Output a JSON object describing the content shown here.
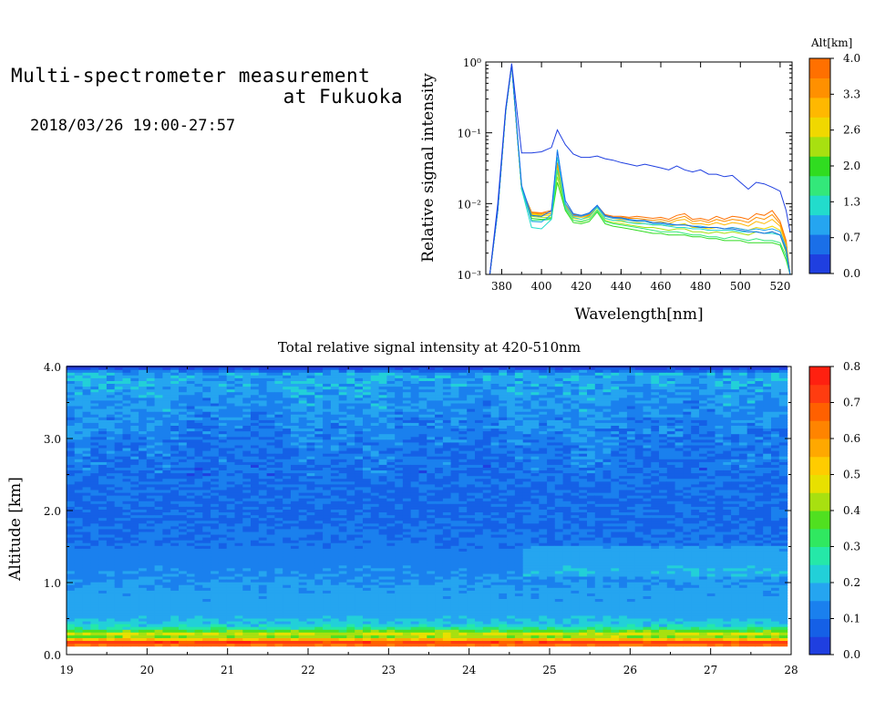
{
  "header": {
    "title_line1": "Multi-spectrometer measurement",
    "title_line2": "at Fukuoka",
    "date_range": "2018/03/26 19:00-27:57"
  },
  "chart_data": [
    {
      "type": "line",
      "name_key": "spectrum",
      "xlabel": "Wavelength[nm]",
      "ylabel": "Relative signal intensity",
      "xlim": [
        372,
        526
      ],
      "ylim": [
        0.001,
        1
      ],
      "yscale": "log",
      "xticks": [
        380,
        400,
        420,
        440,
        460,
        480,
        500,
        520
      ],
      "xtick_labels": [
        "380",
        "400",
        "420",
        "440",
        "460",
        "480",
        "500",
        "520"
      ],
      "ytick_labels": [
        "10⁻³",
        "10⁻²",
        "10⁻¹",
        "10⁰"
      ],
      "colorbar": {
        "title": "Alt[km]",
        "labels": [
          "0.0",
          "0.7",
          "1.3",
          "2.0",
          "2.6",
          "3.3",
          "4.0"
        ],
        "colors": [
          "#1f3fe0",
          "#1a6fe8",
          "#25a5f0",
          "#22dccc",
          "#33e87a",
          "#30dc20",
          "#a8e010",
          "#f0d800",
          "#ffb800",
          "#ff9000",
          "#ff7000"
        ]
      },
      "x": [
        374,
        378,
        382,
        385,
        390,
        395,
        400,
        405,
        408,
        412,
        416,
        420,
        424,
        428,
        432,
        436,
        440,
        444,
        448,
        452,
        456,
        460,
        464,
        468,
        472,
        476,
        480,
        484,
        488,
        492,
        496,
        500,
        504,
        508,
        512,
        516,
        520,
        523,
        525
      ],
      "series": [
        {
          "color": "#1f3fe0",
          "values": [
            0.001,
            0.01,
            0.22,
            0.95,
            0.052,
            0.052,
            0.054,
            0.062,
            0.11,
            0.068,
            0.05,
            0.045,
            0.045,
            0.047,
            0.043,
            0.041,
            0.038,
            0.036,
            0.034,
            0.036,
            0.034,
            0.032,
            0.03,
            0.034,
            0.03,
            0.028,
            0.03,
            0.026,
            0.026,
            0.024,
            0.025,
            0.02,
            0.016,
            0.02,
            0.019,
            0.017,
            0.015,
            0.008,
            0.004
          ]
        },
        {
          "color": "#1a6fe8",
          "values": [
            0.001,
            0.008,
            0.21,
            0.93,
            0.018,
            0.0068,
            0.0066,
            0.008,
            0.055,
            0.011,
            0.0072,
            0.0068,
            0.0074,
            0.0095,
            0.0068,
            0.0064,
            0.0063,
            0.006,
            0.0058,
            0.0058,
            0.0054,
            0.0054,
            0.0052,
            0.005,
            0.005,
            0.0048,
            0.0046,
            0.0046,
            0.0046,
            0.0044,
            0.0044,
            0.0042,
            0.004,
            0.004,
            0.0038,
            0.004,
            0.0036,
            0.0022,
            0.001
          ]
        },
        {
          "color": "#25a5f0",
          "values": [
            0.001,
            0.008,
            0.2,
            0.9,
            0.018,
            0.0056,
            0.0055,
            0.007,
            0.058,
            0.01,
            0.0068,
            0.0066,
            0.0072,
            0.0092,
            0.0066,
            0.0062,
            0.0062,
            0.0058,
            0.0056,
            0.0056,
            0.0052,
            0.0052,
            0.005,
            0.005,
            0.005,
            0.0048,
            0.0048,
            0.0046,
            0.0046,
            0.0044,
            0.0046,
            0.0044,
            0.0042,
            0.0044,
            0.0042,
            0.0044,
            0.004,
            0.0024,
            0.001
          ]
        },
        {
          "color": "#22dccc",
          "values": [
            0.001,
            0.008,
            0.2,
            0.9,
            0.016,
            0.0046,
            0.0044,
            0.006,
            0.045,
            0.009,
            0.0064,
            0.006,
            0.0066,
            0.0088,
            0.0062,
            0.0058,
            0.0058,
            0.0054,
            0.0052,
            0.0052,
            0.005,
            0.005,
            0.0048,
            0.0046,
            0.0046,
            0.0044,
            0.0044,
            0.0042,
            0.0042,
            0.0042,
            0.0042,
            0.004,
            0.004,
            0.004,
            0.0038,
            0.0038,
            0.0036,
            0.0022,
            0.001
          ]
        },
        {
          "color": "#33e87a",
          "values": [
            0.001,
            0.008,
            0.2,
            0.9,
            0.016,
            0.0058,
            0.0058,
            0.006,
            0.03,
            0.0085,
            0.0058,
            0.0056,
            0.006,
            0.008,
            0.0056,
            0.0052,
            0.005,
            0.0048,
            0.0046,
            0.0044,
            0.0042,
            0.004,
            0.004,
            0.004,
            0.0038,
            0.0036,
            0.0036,
            0.0034,
            0.0034,
            0.0032,
            0.0034,
            0.0032,
            0.003,
            0.0032,
            0.003,
            0.003,
            0.0028,
            0.0018,
            0.001
          ]
        },
        {
          "color": "#30dc20",
          "values": [
            0.001,
            0.008,
            0.2,
            0.9,
            0.016,
            0.0062,
            0.006,
            0.0062,
            0.02,
            0.008,
            0.0054,
            0.0052,
            0.0056,
            0.0076,
            0.0052,
            0.0048,
            0.0046,
            0.0044,
            0.0042,
            0.004,
            0.0038,
            0.0038,
            0.0036,
            0.0036,
            0.0036,
            0.0034,
            0.0034,
            0.0032,
            0.0032,
            0.003,
            0.003,
            0.003,
            0.0028,
            0.0028,
            0.0028,
            0.0028,
            0.0026,
            0.0016,
            0.001
          ]
        },
        {
          "color": "#a8e010",
          "values": [
            0.001,
            0.008,
            0.2,
            0.9,
            0.016,
            0.0066,
            0.0064,
            0.0064,
            0.024,
            0.0084,
            0.0058,
            0.0055,
            0.006,
            0.0082,
            0.0058,
            0.0054,
            0.0052,
            0.005,
            0.0048,
            0.0046,
            0.0046,
            0.0044,
            0.0042,
            0.0044,
            0.0044,
            0.004,
            0.004,
            0.0038,
            0.004,
            0.0038,
            0.004,
            0.0038,
            0.0036,
            0.004,
            0.0038,
            0.004,
            0.0036,
            0.002,
            0.001
          ]
        },
        {
          "color": "#f0d800",
          "values": [
            0.001,
            0.008,
            0.2,
            0.9,
            0.016,
            0.007,
            0.0068,
            0.0068,
            0.028,
            0.009,
            0.0062,
            0.006,
            0.0064,
            0.0088,
            0.0062,
            0.0058,
            0.0056,
            0.0054,
            0.0054,
            0.0052,
            0.005,
            0.005,
            0.0048,
            0.005,
            0.0052,
            0.0046,
            0.0046,
            0.0044,
            0.0046,
            0.0044,
            0.0046,
            0.0044,
            0.0042,
            0.0046,
            0.0044,
            0.0048,
            0.0042,
            0.0024,
            0.001
          ]
        },
        {
          "color": "#ffb800",
          "values": [
            0.001,
            0.008,
            0.2,
            0.9,
            0.016,
            0.0072,
            0.007,
            0.0072,
            0.032,
            0.0094,
            0.0066,
            0.0064,
            0.0066,
            0.009,
            0.0066,
            0.0062,
            0.006,
            0.0058,
            0.0058,
            0.0056,
            0.0054,
            0.0056,
            0.0052,
            0.0058,
            0.006,
            0.0052,
            0.0052,
            0.005,
            0.0054,
            0.005,
            0.0054,
            0.0052,
            0.0048,
            0.0056,
            0.0052,
            0.006,
            0.0048,
            0.0026,
            0.001
          ]
        },
        {
          "color": "#ff9000",
          "values": [
            0.001,
            0.008,
            0.2,
            0.9,
            0.016,
            0.0074,
            0.0072,
            0.0076,
            0.035,
            0.0098,
            0.0068,
            0.0066,
            0.0068,
            0.0092,
            0.0068,
            0.0064,
            0.0064,
            0.0062,
            0.0062,
            0.006,
            0.0058,
            0.006,
            0.0056,
            0.0062,
            0.0066,
            0.0056,
            0.0058,
            0.0054,
            0.006,
            0.0056,
            0.006,
            0.0058,
            0.0054,
            0.0064,
            0.006,
            0.007,
            0.0052,
            0.0028,
            0.001
          ]
        },
        {
          "color": "#ff7000",
          "values": [
            0.001,
            0.008,
            0.2,
            0.9,
            0.016,
            0.0076,
            0.0074,
            0.008,
            0.038,
            0.01,
            0.007,
            0.0068,
            0.007,
            0.0094,
            0.007,
            0.0066,
            0.0066,
            0.0064,
            0.0066,
            0.0064,
            0.0062,
            0.0064,
            0.006,
            0.0068,
            0.0072,
            0.006,
            0.0062,
            0.0058,
            0.0066,
            0.006,
            0.0066,
            0.0064,
            0.006,
            0.0072,
            0.0068,
            0.008,
            0.0056,
            0.003,
            0.001
          ]
        }
      ]
    },
    {
      "type": "heatmap",
      "name_key": "altitude-time",
      "title": "Total relative signal intensity at 420-510nm",
      "xlabel": "",
      "ylabel": "Altitude [km]",
      "xlim": [
        19,
        28
      ],
      "ylim": [
        0,
        4
      ],
      "xtick_labels": [
        "19",
        "20",
        "21",
        "22",
        "23",
        "24",
        "25",
        "26",
        "27",
        "28"
      ],
      "ytick_labels": [
        "0.0",
        "1.0",
        "2.0",
        "3.0",
        "4.0"
      ],
      "data_end_hour": 27.95,
      "colorbar": {
        "labels": [
          "0.0",
          "0.1",
          "0.2",
          "0.3",
          "0.4",
          "0.5",
          "0.6",
          "0.7",
          "0.8"
        ],
        "colors": [
          "#1f3fe0",
          "#1560e6",
          "#1a80ee",
          "#25a5f0",
          "#22d0d8",
          "#25e8a8",
          "#30e860",
          "#50e020",
          "#a8e010",
          "#e8e000",
          "#ffcc00",
          "#ffa800",
          "#ff8400",
          "#ff6000",
          "#ff3c10",
          "#ff2010"
        ]
      },
      "profile": [
        {
          "alt": 0.14,
          "value": 0.66
        },
        {
          "alt": 0.19,
          "value": 0.74
        },
        {
          "alt": 0.24,
          "value": 0.4
        },
        {
          "alt": 0.3,
          "value": 0.46
        },
        {
          "alt": 0.36,
          "value": 0.3
        },
        {
          "alt": 0.42,
          "value": 0.22
        },
        {
          "alt": 0.6,
          "value": 0.17
        },
        {
          "alt": 0.9,
          "value": 0.16
        },
        {
          "alt": 1.2,
          "value": 0.14
        },
        {
          "alt": 1.5,
          "value": 0.11
        },
        {
          "alt": 2.0,
          "value": 0.09
        },
        {
          "alt": 2.5,
          "value": 0.1
        },
        {
          "alt": 3.0,
          "value": 0.12
        },
        {
          "alt": 3.5,
          "value": 0.15
        },
        {
          "alt": 3.9,
          "value": 0.18
        },
        {
          "alt": 3.98,
          "value": 0.05
        }
      ]
    }
  ]
}
